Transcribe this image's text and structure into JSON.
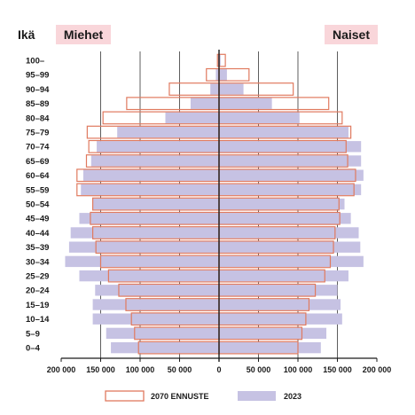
{
  "chart_data": {
    "type": "bar",
    "subtype": "population-pyramid",
    "header_label": "Ikä",
    "left_group": "Miehet",
    "right_group": "Naiset",
    "categories": [
      "100–",
      "95–99",
      "90–94",
      "85–89",
      "80–84",
      "75–79",
      "70–74",
      "65–69",
      "60–64",
      "55–59",
      "50–54",
      "45–49",
      "40–44",
      "35–39",
      "30–34",
      "25–29",
      "20–24",
      "15–19",
      "10–14",
      "5–9",
      "0–4"
    ],
    "series": [
      {
        "name": "2023",
        "style": "filled",
        "men": [
          1000,
          4000,
          11000,
          36000,
          68000,
          129000,
          155000,
          162000,
          172000,
          175000,
          160000,
          177000,
          188000,
          190000,
          195000,
          177000,
          157000,
          160000,
          160000,
          143000,
          137000
        ],
        "women": [
          2000,
          10000,
          31000,
          67000,
          102000,
          164000,
          180000,
          180000,
          183000,
          180000,
          159000,
          167000,
          177000,
          179000,
          183000,
          164000,
          150000,
          154000,
          156000,
          136000,
          129000
        ]
      },
      {
        "name": "2070 ENNUSTE",
        "style": "outline",
        "men": [
          2000,
          16000,
          63000,
          117000,
          147000,
          167000,
          165000,
          168000,
          180000,
          180000,
          160000,
          163000,
          160000,
          156000,
          150000,
          140000,
          127000,
          118000,
          111000,
          107000,
          102000
        ],
        "women": [
          8000,
          38000,
          94000,
          139000,
          156000,
          167000,
          161000,
          163000,
          173000,
          171000,
          152000,
          153000,
          147000,
          145000,
          141000,
          134000,
          122000,
          114000,
          110000,
          105000,
          100000
        ]
      }
    ],
    "x_ticks": [
      200000,
      150000,
      100000,
      50000,
      0,
      50000,
      100000,
      150000,
      200000
    ],
    "x_tick_labels": [
      "200 000",
      "150 000",
      "100 000",
      "50 000",
      "0",
      "50 000",
      "100 000",
      "150 000",
      "200 000"
    ],
    "xlim": [
      -200000,
      200000
    ],
    "legend_position": "bottom",
    "grid": true,
    "colors": {
      "fill_2023": "#c6c2e3",
      "outline_2070": "#e07a5f",
      "group_box": "#f9d6da",
      "axis": "#1a1a1a"
    }
  }
}
